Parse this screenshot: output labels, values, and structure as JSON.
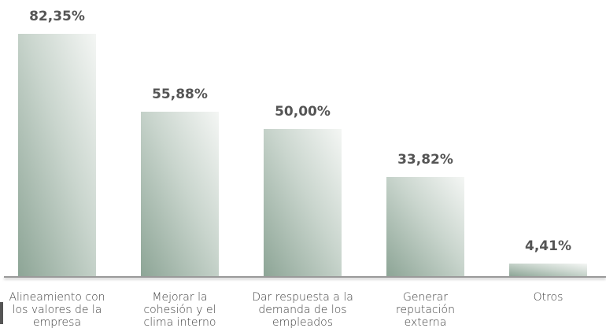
{
  "chart_data": {
    "type": "bar",
    "categories": [
      "Alineamiento con los valores de la empresa",
      "Mejorar la cohesión y el clima interno",
      "Dar respuesta a la demanda de los empleados",
      "Generar reputación externa",
      "Otros"
    ],
    "values": [
      82.35,
      55.88,
      50,
      33.82,
      4.41
    ],
    "value_labels": [
      "82,35%",
      "55,88%",
      "50,00%",
      "33,82%",
      "4,41%"
    ]
  }
}
